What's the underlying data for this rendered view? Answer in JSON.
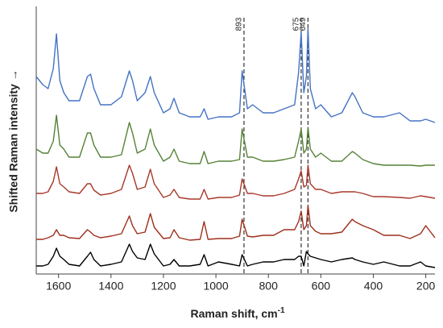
{
  "chart_data": {
    "type": "line",
    "xlabel": "Raman shift, cm",
    "xlabel_sup": "-1",
    "ylabel": "Shifted Raman intensity →",
    "xlim": [
      1685,
      165
    ],
    "xticks": [
      1600,
      1400,
      1200,
      1000,
      800,
      600,
      400,
      200
    ],
    "ylim": [
      0,
      332
    ],
    "annotations": [
      893,
      675,
      649
    ],
    "x": [
      1685,
      1660,
      1640,
      1620,
      1608,
      1595,
      1580,
      1560,
      1520,
      1490,
      1478,
      1465,
      1440,
      1400,
      1360,
      1330,
      1318,
      1300,
      1270,
      1250,
      1235,
      1200,
      1175,
      1160,
      1140,
      1100,
      1060,
      1045,
      1030,
      990,
      940,
      910,
      900,
      880,
      860,
      820,
      780,
      740,
      700,
      685,
      675,
      665,
      655,
      649,
      640,
      620,
      600,
      560,
      520,
      480,
      470,
      440,
      400,
      360,
      300,
      260,
      220,
      200,
      165
    ],
    "series": [
      {
        "color": "#4472c4",
        "values": [
          245,
          235,
          230,
          255,
          298,
          240,
          225,
          215,
          215,
          245,
          248,
          230,
          210,
          210,
          220,
          252,
          240,
          215,
          225,
          245,
          225,
          200,
          205,
          218,
          200,
          195,
          195,
          205,
          192,
          195,
          195,
          200,
          252,
          205,
          210,
          200,
          200,
          205,
          210,
          250,
          300,
          225,
          245,
          305,
          230,
          205,
          210,
          195,
          200,
          225,
          220,
          200,
          195,
          195,
          200,
          190,
          190,
          192,
          188
        ]
      },
      {
        "color": "#548235",
        "values": [
          155,
          150,
          150,
          165,
          197,
          160,
          155,
          145,
          145,
          175,
          175,
          160,
          145,
          145,
          148,
          188,
          175,
          150,
          155,
          180,
          160,
          140,
          145,
          155,
          140,
          137,
          137,
          152,
          137,
          140,
          140,
          142,
          180,
          145,
          145,
          140,
          140,
          142,
          145,
          165,
          180,
          150,
          155,
          182,
          155,
          145,
          150,
          140,
          140,
          152,
          150,
          142,
          137,
          135,
          135,
          135,
          134,
          135,
          135
        ]
      },
      {
        "color": "#a8382a",
        "values": [
          100,
          100,
          102,
          115,
          133,
          112,
          108,
          102,
          100,
          112,
          112,
          104,
          98,
          100,
          105,
          135,
          125,
          105,
          108,
          130,
          112,
          95,
          98,
          105,
          95,
          93,
          93,
          105,
          93,
          95,
          95,
          98,
          118,
          100,
          100,
          97,
          97,
          100,
          105,
          118,
          128,
          108,
          110,
          135,
          112,
          105,
          105,
          100,
          102,
          102,
          102,
          100,
          96,
          96,
          95,
          94,
          97,
          96,
          94
        ]
      },
      {
        "color": "#9e2f1c",
        "values": [
          43,
          43,
          45,
          48,
          55,
          48,
          48,
          45,
          44,
          55,
          52,
          48,
          45,
          47,
          50,
          72,
          60,
          50,
          52,
          75,
          58,
          44,
          45,
          55,
          45,
          42,
          43,
          65,
          43,
          44,
          44,
          47,
          68,
          47,
          46,
          48,
          48,
          55,
          55,
          65,
          78,
          55,
          60,
          85,
          60,
          53,
          50,
          50,
          52,
          68,
          65,
          60,
          55,
          48,
          48,
          44,
          50,
          60,
          45
        ]
      },
      {
        "color": "#000000",
        "values": [
          10,
          10,
          12,
          22,
          32,
          22,
          18,
          12,
          10,
          22,
          27,
          18,
          10,
          12,
          15,
          37,
          28,
          20,
          18,
          37,
          25,
          10,
          12,
          18,
          10,
          10,
          12,
          24,
          10,
          15,
          12,
          10,
          24,
          10,
          12,
          15,
          15,
          18,
          18,
          22,
          22,
          10,
          28,
          25,
          22,
          20,
          18,
          15,
          18,
          20,
          18,
          15,
          12,
          15,
          10,
          10,
          15,
          10,
          8
        ]
      }
    ]
  }
}
